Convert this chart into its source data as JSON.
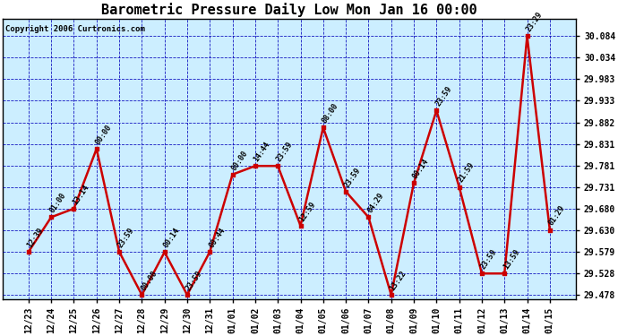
{
  "title": "Barometric Pressure Daily Low Mon Jan 16 00:00",
  "copyright": "Copyright 2006 Curtronics.com",
  "background_color": "#ffffff",
  "plot_bg_color": "#cceeff",
  "grid_color": "#0000bb",
  "line_color": "#cc0000",
  "marker_color": "#cc0000",
  "x_labels": [
    "12/23",
    "12/24",
    "12/25",
    "12/26",
    "12/27",
    "12/28",
    "12/29",
    "12/30",
    "12/31",
    "01/01",
    "01/02",
    "01/03",
    "01/04",
    "01/05",
    "01/06",
    "01/07",
    "01/08",
    "01/09",
    "01/10",
    "01/11",
    "01/12",
    "01/13",
    "01/14",
    "01/15"
  ],
  "y_values": [
    29.579,
    29.66,
    29.68,
    29.82,
    29.579,
    29.478,
    29.578,
    29.478,
    29.579,
    29.76,
    29.78,
    29.78,
    29.64,
    29.87,
    29.72,
    29.66,
    29.478,
    29.74,
    29.91,
    29.731,
    29.528,
    29.528,
    30.084,
    29.63
  ],
  "point_labels": [
    "12:39",
    "01:00",
    "13:14",
    "00:00",
    "23:59",
    "00:00",
    "00:14",
    "23:59",
    "00:44",
    "00:00",
    "14:44",
    "23:59",
    "12:59",
    "08:00",
    "23:59",
    "04:29",
    "13:22",
    "00:14",
    "23:59",
    "21:59",
    "23:59",
    "13:59",
    "23:29",
    "01:29"
  ],
  "ylim_min": 29.478,
  "ylim_max": 30.084,
  "yticks": [
    29.478,
    29.528,
    29.579,
    29.63,
    29.68,
    29.731,
    29.781,
    29.831,
    29.882,
    29.933,
    29.983,
    30.034,
    30.084
  ],
  "title_fontsize": 11,
  "axis_fontsize": 7,
  "label_fontsize": 6
}
